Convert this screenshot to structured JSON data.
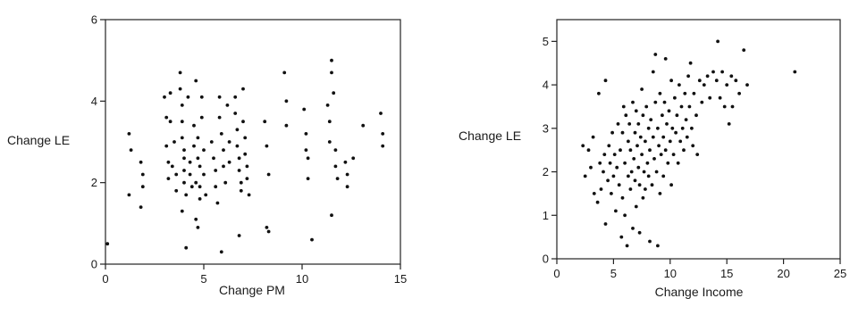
{
  "chart_data": [
    {
      "type": "scatter",
      "title": "",
      "xlabel": "Change PM",
      "ylabel": "Change LE",
      "xlim": [
        0,
        15
      ],
      "ylim": [
        0,
        6
      ],
      "xticks": [
        0,
        5,
        10,
        15
      ],
      "yticks": [
        0,
        2,
        4,
        6
      ],
      "grid": false,
      "points": [
        [
          0.1,
          0.5
        ],
        [
          1.2,
          3.2
        ],
        [
          1.3,
          2.8
        ],
        [
          1.2,
          1.7
        ],
        [
          1.8,
          2.5
        ],
        [
          1.9,
          2.2
        ],
        [
          1.9,
          1.9
        ],
        [
          1.8,
          1.4
        ],
        [
          3.0,
          4.1
        ],
        [
          3.1,
          3.6
        ],
        [
          3.1,
          2.9
        ],
        [
          3.2,
          2.5
        ],
        [
          3.2,
          2.1
        ],
        [
          3.3,
          4.2
        ],
        [
          3.3,
          3.5
        ],
        [
          3.4,
          2.4
        ],
        [
          3.5,
          3.0
        ],
        [
          3.6,
          2.2
        ],
        [
          3.6,
          1.8
        ],
        [
          3.8,
          4.7
        ],
        [
          3.8,
          4.3
        ],
        [
          3.9,
          3.9
        ],
        [
          3.9,
          3.5
        ],
        [
          3.9,
          3.1
        ],
        [
          4.0,
          2.8
        ],
        [
          4.0,
          2.6
        ],
        [
          4.0,
          2.3
        ],
        [
          4.0,
          2.0
        ],
        [
          4.1,
          1.7
        ],
        [
          3.9,
          1.3
        ],
        [
          4.2,
          4.1
        ],
        [
          4.1,
          0.4
        ],
        [
          4.3,
          2.5
        ],
        [
          4.3,
          2.2
        ],
        [
          4.4,
          1.9
        ],
        [
          4.5,
          3.4
        ],
        [
          4.5,
          2.9
        ],
        [
          4.6,
          4.5
        ],
        [
          4.6,
          2.0
        ],
        [
          4.6,
          1.1
        ],
        [
          4.7,
          3.1
        ],
        [
          4.7,
          2.6
        ],
        [
          4.8,
          2.4
        ],
        [
          4.8,
          1.9
        ],
        [
          4.8,
          1.6
        ],
        [
          4.7,
          0.9
        ],
        [
          4.9,
          4.1
        ],
        [
          4.9,
          3.6
        ],
        [
          5.0,
          2.8
        ],
        [
          5.0,
          2.2
        ],
        [
          5.1,
          1.7
        ],
        [
          5.4,
          3.0
        ],
        [
          5.5,
          2.6
        ],
        [
          5.6,
          2.3
        ],
        [
          5.6,
          1.9
        ],
        [
          5.7,
          1.5
        ],
        [
          5.8,
          4.1
        ],
        [
          5.8,
          3.6
        ],
        [
          5.9,
          3.2
        ],
        [
          6.0,
          2.8
        ],
        [
          6.0,
          2.4
        ],
        [
          6.1,
          2.0
        ],
        [
          6.2,
          3.9
        ],
        [
          6.3,
          3.0
        ],
        [
          6.3,
          2.5
        ],
        [
          5.9,
          0.3
        ],
        [
          6.6,
          4.1
        ],
        [
          6.6,
          3.7
        ],
        [
          6.7,
          3.3
        ],
        [
          6.7,
          2.9
        ],
        [
          6.8,
          2.6
        ],
        [
          6.8,
          2.3
        ],
        [
          6.9,
          2.0
        ],
        [
          6.9,
          1.8
        ],
        [
          7.0,
          4.3
        ],
        [
          7.0,
          3.5
        ],
        [
          7.1,
          3.1
        ],
        [
          7.1,
          2.7
        ],
        [
          7.2,
          2.4
        ],
        [
          7.2,
          2.1
        ],
        [
          7.3,
          1.7
        ],
        [
          6.8,
          0.7
        ],
        [
          8.1,
          3.5
        ],
        [
          8.2,
          2.9
        ],
        [
          8.3,
          2.2
        ],
        [
          8.2,
          0.9
        ],
        [
          8.3,
          0.8
        ],
        [
          9.1,
          4.7
        ],
        [
          9.2,
          4.0
        ],
        [
          9.2,
          3.4
        ],
        [
          10.1,
          3.8
        ],
        [
          10.2,
          3.2
        ],
        [
          10.2,
          2.8
        ],
        [
          10.3,
          2.6
        ],
        [
          10.3,
          2.1
        ],
        [
          10.5,
          0.6
        ],
        [
          11.3,
          3.9
        ],
        [
          11.4,
          3.5
        ],
        [
          11.4,
          3.0
        ],
        [
          11.5,
          5.0
        ],
        [
          11.5,
          4.7
        ],
        [
          11.6,
          4.2
        ],
        [
          11.7,
          2.8
        ],
        [
          11.7,
          2.4
        ],
        [
          11.8,
          2.1
        ],
        [
          11.5,
          1.2
        ],
        [
          12.2,
          2.5
        ],
        [
          12.3,
          2.2
        ],
        [
          12.3,
          1.9
        ],
        [
          12.6,
          2.6
        ],
        [
          13.1,
          3.4
        ],
        [
          14.0,
          3.7
        ],
        [
          14.1,
          3.2
        ],
        [
          14.1,
          2.9
        ]
      ]
    },
    {
      "type": "scatter",
      "title": "",
      "xlabel": "Change Income",
      "ylabel": "Change LE",
      "xlim": [
        0,
        25
      ],
      "ylim": [
        0,
        5.5
      ],
      "xticks": [
        0,
        5,
        10,
        15,
        20,
        25
      ],
      "yticks": [
        0,
        1,
        2,
        3,
        4,
        5
      ],
      "grid": false,
      "points": [
        [
          2.3,
          2.6
        ],
        [
          2.5,
          1.9
        ],
        [
          2.8,
          2.5
        ],
        [
          3.0,
          2.1
        ],
        [
          3.2,
          2.8
        ],
        [
          3.3,
          1.5
        ],
        [
          3.6,
          1.3
        ],
        [
          3.7,
          3.8
        ],
        [
          3.8,
          2.2
        ],
        [
          3.9,
          1.6
        ],
        [
          4.1,
          2.0
        ],
        [
          4.2,
          2.4
        ],
        [
          4.3,
          4.1
        ],
        [
          4.3,
          0.8
        ],
        [
          4.5,
          1.8
        ],
        [
          4.6,
          2.6
        ],
        [
          4.7,
          2.2
        ],
        [
          4.8,
          1.5
        ],
        [
          4.9,
          2.9
        ],
        [
          5.0,
          1.9
        ],
        [
          5.1,
          2.4
        ],
        [
          5.2,
          1.1
        ],
        [
          5.3,
          2.1
        ],
        [
          5.4,
          3.1
        ],
        [
          5.5,
          1.7
        ],
        [
          5.6,
          2.5
        ],
        [
          5.7,
          0.5
        ],
        [
          5.8,
          2.9
        ],
        [
          5.8,
          1.4
        ],
        [
          5.9,
          3.5
        ],
        [
          6.0,
          2.2
        ],
        [
          6.0,
          1.0
        ],
        [
          6.1,
          3.3
        ],
        [
          6.2,
          0.3
        ],
        [
          6.3,
          2.7
        ],
        [
          6.3,
          1.9
        ],
        [
          6.4,
          3.1
        ],
        [
          6.5,
          2.5
        ],
        [
          6.5,
          1.6
        ],
        [
          6.6,
          2.0
        ],
        [
          6.7,
          3.6
        ],
        [
          6.7,
          0.7
        ],
        [
          6.8,
          2.3
        ],
        [
          6.9,
          1.8
        ],
        [
          6.9,
          2.9
        ],
        [
          7.0,
          3.4
        ],
        [
          7.0,
          1.2
        ],
        [
          7.1,
          2.6
        ],
        [
          7.2,
          2.1
        ],
        [
          7.2,
          3.1
        ],
        [
          7.3,
          0.6
        ],
        [
          7.3,
          1.7
        ],
        [
          7.4,
          2.8
        ],
        [
          7.5,
          3.9
        ],
        [
          7.5,
          2.4
        ],
        [
          7.6,
          1.4
        ],
        [
          7.6,
          3.3
        ],
        [
          7.7,
          2.0
        ],
        [
          7.8,
          2.7
        ],
        [
          7.8,
          1.6
        ],
        [
          7.9,
          3.5
        ],
        [
          8.0,
          2.2
        ],
        [
          8.1,
          3.0
        ],
        [
          8.1,
          1.9
        ],
        [
          8.2,
          2.5
        ],
        [
          8.2,
          0.4
        ],
        [
          8.3,
          3.2
        ],
        [
          8.4,
          1.7
        ],
        [
          8.5,
          2.8
        ],
        [
          8.5,
          4.3
        ],
        [
          8.6,
          2.3
        ],
        [
          8.7,
          4.7
        ],
        [
          8.7,
          3.6
        ],
        [
          8.8,
          2.0
        ],
        [
          8.9,
          3.0
        ],
        [
          8.9,
          0.3
        ],
        [
          9.0,
          2.6
        ],
        [
          9.1,
          3.8
        ],
        [
          9.1,
          1.5
        ],
        [
          9.2,
          2.4
        ],
        [
          9.3,
          3.3
        ],
        [
          9.4,
          2.8
        ],
        [
          9.4,
          1.9
        ],
        [
          9.5,
          3.6
        ],
        [
          9.6,
          2.5
        ],
        [
          9.6,
          4.6
        ],
        [
          9.7,
          3.1
        ],
        [
          9.8,
          2.2
        ],
        [
          9.9,
          3.4
        ],
        [
          10.0,
          2.7
        ],
        [
          10.1,
          4.1
        ],
        [
          10.1,
          1.7
        ],
        [
          10.2,
          3.0
        ],
        [
          10.3,
          2.4
        ],
        [
          10.4,
          3.7
        ],
        [
          10.5,
          2.9
        ],
        [
          10.6,
          3.3
        ],
        [
          10.7,
          2.2
        ],
        [
          10.8,
          4.0
        ],
        [
          10.9,
          2.7
        ],
        [
          11.0,
          3.5
        ],
        [
          11.1,
          3.0
        ],
        [
          11.2,
          2.5
        ],
        [
          11.3,
          3.8
        ],
        [
          11.4,
          3.2
        ],
        [
          11.5,
          2.8
        ],
        [
          11.6,
          4.2
        ],
        [
          11.7,
          3.5
        ],
        [
          11.8,
          4.5
        ],
        [
          11.9,
          3.0
        ],
        [
          12.0,
          2.6
        ],
        [
          12.1,
          3.8
        ],
        [
          12.3,
          3.3
        ],
        [
          12.4,
          2.4
        ],
        [
          12.6,
          4.1
        ],
        [
          12.8,
          3.6
        ],
        [
          13.0,
          4.0
        ],
        [
          13.3,
          4.2
        ],
        [
          13.5,
          3.7
        ],
        [
          13.8,
          4.3
        ],
        [
          14.1,
          4.1
        ],
        [
          14.2,
          5.0
        ],
        [
          14.4,
          3.7
        ],
        [
          14.6,
          4.3
        ],
        [
          14.8,
          3.5
        ],
        [
          15.0,
          4.0
        ],
        [
          15.2,
          3.1
        ],
        [
          15.4,
          4.2
        ],
        [
          15.5,
          3.5
        ],
        [
          15.8,
          4.1
        ],
        [
          16.1,
          3.8
        ],
        [
          16.5,
          4.8
        ],
        [
          16.8,
          4.0
        ],
        [
          21.0,
          4.3
        ]
      ]
    }
  ]
}
